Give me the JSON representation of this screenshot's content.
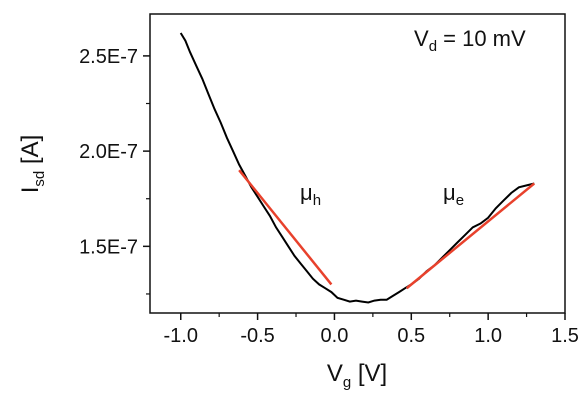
{
  "chart_data": {
    "type": "line",
    "xlabel": {
      "main": "V",
      "sub": "g",
      "unit": " [V]"
    },
    "ylabel": {
      "main": "I",
      "sub": "sd",
      "unit": " [A]"
    },
    "xlim": [
      -1.2,
      1.5
    ],
    "ylim": [
      1.15e-07,
      2.72e-07
    ],
    "x_ticks": [
      -1.0,
      -0.5,
      0.0,
      0.5,
      1.0,
      1.5
    ],
    "x_tick_labels": [
      "-1.0",
      "-0.5",
      "0.0",
      "0.5",
      "1.0",
      "1.5"
    ],
    "y_ticks": [
      1.5e-07,
      2e-07,
      2.5e-07
    ],
    "y_tick_labels": [
      "1.5E-7",
      "2.0E-7",
      "2.5E-7"
    ],
    "grid": false,
    "colors": {
      "data": "#000000",
      "fit": "#e8412c",
      "axis": "#111111"
    },
    "annotations": {
      "vd": {
        "main": "V",
        "sub": "d",
        "rest": " = 10 mV"
      },
      "mu_h": {
        "main": "μ",
        "sub": "h"
      },
      "mu_e": {
        "main": "μ",
        "sub": "e"
      }
    },
    "series": [
      {
        "x": [
          -1.0,
          -0.97,
          -0.94,
          -0.9,
          -0.86,
          -0.82,
          -0.78,
          -0.74,
          -0.7,
          -0.66,
          -0.62,
          -0.58,
          -0.54,
          -0.5,
          -0.46,
          -0.42,
          -0.38,
          -0.34,
          -0.3,
          -0.26,
          -0.22,
          -0.18,
          -0.14,
          -0.1,
          -0.06,
          -0.02,
          0.02,
          0.06,
          0.1,
          0.14,
          0.18,
          0.22,
          0.26,
          0.3,
          0.34,
          0.38,
          0.42,
          0.46,
          0.5,
          0.55,
          0.6,
          0.65,
          0.7,
          0.75,
          0.8,
          0.85,
          0.9,
          0.95,
          1.0,
          1.05,
          1.1,
          1.15,
          1.2,
          1.25,
          1.3
        ],
        "y": [
          2.62e-07,
          2.58e-07,
          2.52e-07,
          2.45e-07,
          2.38e-07,
          2.3e-07,
          2.22e-07,
          2.15e-07,
          2.07e-07,
          2e-07,
          1.93e-07,
          1.87e-07,
          1.81e-07,
          1.76e-07,
          1.71e-07,
          1.66e-07,
          1.6e-07,
          1.55e-07,
          1.5e-07,
          1.45e-07,
          1.41e-07,
          1.37e-07,
          1.33e-07,
          1.3e-07,
          1.28e-07,
          1.26e-07,
          1.23e-07,
          1.22e-07,
          1.21e-07,
          1.215e-07,
          1.21e-07,
          1.205e-07,
          1.215e-07,
          1.22e-07,
          1.22e-07,
          1.24e-07,
          1.26e-07,
          1.28e-07,
          1.3e-07,
          1.33e-07,
          1.37e-07,
          1.4e-07,
          1.44e-07,
          1.48e-07,
          1.52e-07,
          1.56e-07,
          1.6e-07,
          1.62e-07,
          1.65e-07,
          1.7e-07,
          1.74e-07,
          1.78e-07,
          1.81e-07,
          1.82e-07,
          1.83e-07
        ]
      }
    ],
    "fits": [
      {
        "x": [
          -0.62,
          -0.02
        ],
        "y": [
          1.9e-07,
          1.3e-07
        ]
      },
      {
        "x": [
          0.47,
          1.3
        ],
        "y": [
          1.28e-07,
          1.83e-07
        ]
      }
    ]
  }
}
